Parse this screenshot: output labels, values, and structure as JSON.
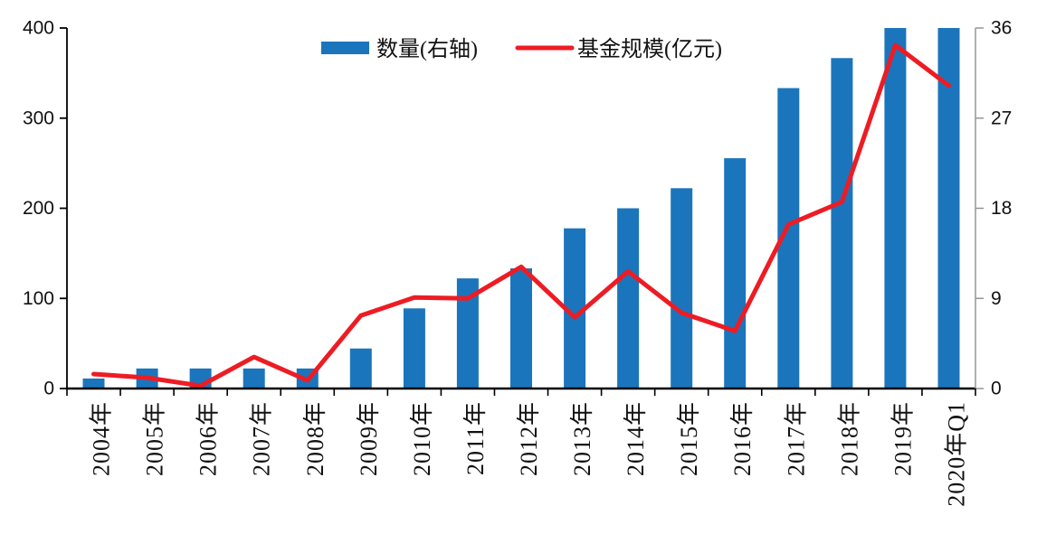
{
  "chart_data": {
    "type": "bar",
    "combo": "bar+line, dual axis",
    "title": "",
    "xlabel": "",
    "ylabel": "",
    "grid": false,
    "legend_position": "top-center",
    "categories": [
      "2004年",
      "2005年",
      "2006年",
      "2007年",
      "2008年",
      "2009年",
      "2010年",
      "2011年",
      "2012年",
      "2013年",
      "2014年",
      "2015年",
      "2016年",
      "2017年",
      "2018年",
      "2019年",
      "2020年Q1"
    ],
    "series": [
      {
        "name": "数量(右轴)",
        "type": "bar",
        "axis": "right",
        "color": "#1B75BC",
        "values": [
          1,
          2,
          2,
          2,
          2,
          4,
          8,
          11,
          12,
          16,
          18,
          20,
          23,
          30,
          33,
          36,
          36
        ]
      },
      {
        "name": "基金规模(亿元)",
        "type": "line",
        "axis": "left",
        "color": "#ED1C24",
        "values": [
          16,
          12,
          3,
          35,
          9,
          81,
          101,
          100,
          135,
          79,
          130,
          84,
          64,
          182,
          207,
          381,
          336
        ]
      }
    ],
    "left_axis": {
      "min": 0,
      "max": 400,
      "ticks": [
        "0",
        "100",
        "200",
        "300",
        "400"
      ]
    },
    "right_axis": {
      "min": 0,
      "max": 36,
      "ticks": [
        "0",
        "9",
        "18",
        "27",
        "36"
      ]
    }
  },
  "colors": {
    "bar": "#1B75BC",
    "line": "#ED1C24",
    "axis_black": "#000000",
    "axis_gray": "#8f8f8f",
    "background": "#ffffff"
  }
}
